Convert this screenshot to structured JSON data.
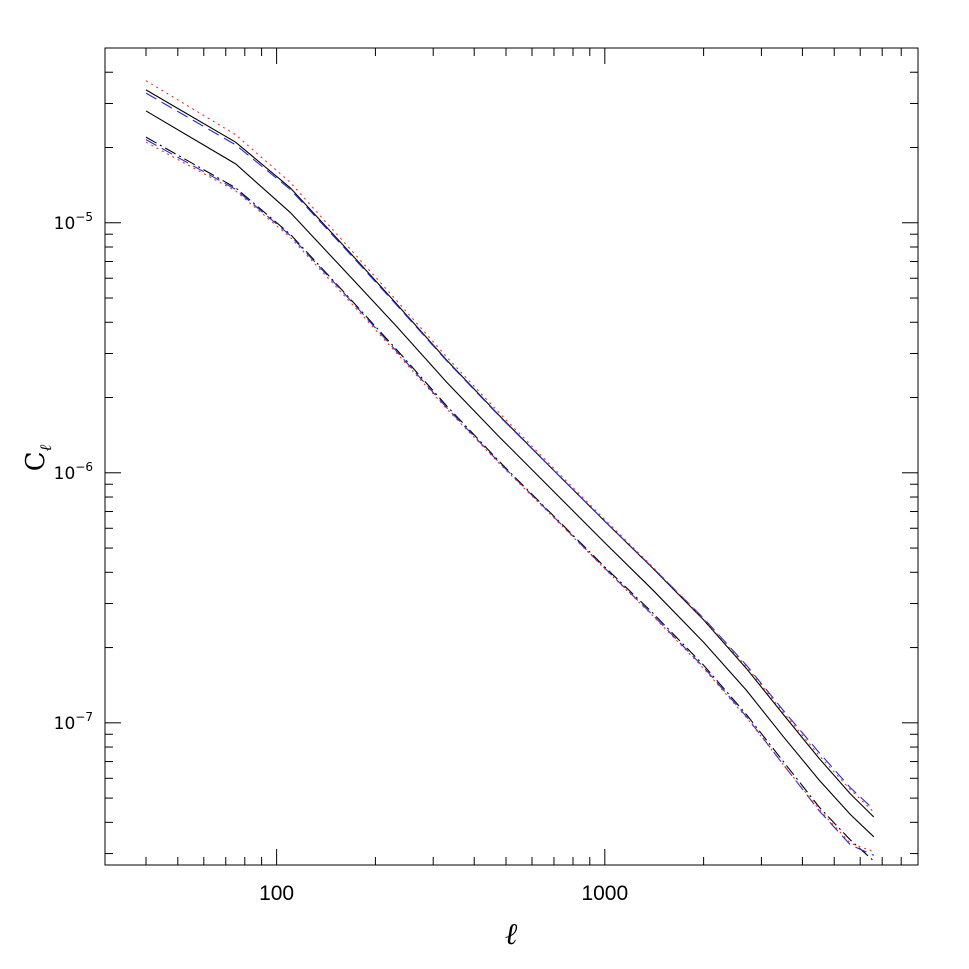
{
  "chart_data": {
    "type": "line",
    "title": "",
    "xlabel": "ℓ",
    "ylabel_main": "C",
    "ylabel_sub": "ℓ",
    "xscale": "log",
    "yscale": "log",
    "xlim": [
      30,
      9000
    ],
    "ylim": [
      2.7e-08,
      5e-05
    ],
    "grid": false,
    "legend": "none",
    "x_ticks": [
      {
        "value": 100,
        "label": "100"
      },
      {
        "value": 1000,
        "label": "1000"
      }
    ],
    "y_ticks": [
      {
        "value": 1e-05,
        "base": "10",
        "exp": "−5"
      },
      {
        "value": 1e-06,
        "base": "10",
        "exp": "−6"
      },
      {
        "value": 1e-07,
        "base": "10",
        "exp": "−7"
      }
    ],
    "x": [
      40,
      75,
      110,
      160,
      230,
      330,
      480,
      700,
      1000,
      1400,
      2000,
      2700,
      3500,
      4500,
      5600,
      6600
    ],
    "series": [
      {
        "style": "solid",
        "color": "#000000",
        "values": [
          2.8e-05,
          1.72e-05,
          1.1e-05,
          6.5e-06,
          3.9e-06,
          2.3e-06,
          1.38e-06,
          8.4e-07,
          5.25e-07,
          3.4e-07,
          2.1e-07,
          1.35e-07,
          8.8e-08,
          5.9e-08,
          4.3e-08,
          3.5e-08
        ]
      },
      {
        "style": "solid",
        "color": "#000000",
        "values": [
          3.4e-05,
          2.1e-05,
          1.38e-05,
          8.1e-06,
          4.8e-06,
          2.82e-06,
          1.68e-06,
          1.02e-06,
          6.4e-07,
          4.15e-07,
          2.58e-07,
          1.65e-07,
          1.08e-07,
          7.2e-08,
          5.2e-08,
          4.2e-08
        ]
      },
      {
        "style": "dashdot",
        "color": "#000000",
        "values": [
          2.2e-05,
          1.38e-05,
          9e-06,
          5.3e-06,
          3.15e-06,
          1.85e-06,
          1.1e-06,
          6.7e-07,
          4.2e-07,
          2.75e-07,
          1.7e-07,
          1.08e-07,
          7e-08,
          4.6e-08,
          3.4e-08,
          2.8e-08
        ]
      },
      {
        "style": "dashed",
        "color": "#2b2bd8",
        "values": [
          3.3e-05,
          2.05e-05,
          1.36e-05,
          8e-06,
          4.75e-06,
          2.8e-06,
          1.67e-06,
          1.02e-06,
          6.4e-07,
          4.17e-07,
          2.62e-07,
          1.7e-07,
          1.12e-07,
          7.6e-08,
          5.5e-08,
          4.5e-08
        ]
      },
      {
        "style": "dashed",
        "color": "#2b2bd8",
        "values": [
          2.15e-05,
          1.36e-05,
          8.9e-06,
          5.25e-06,
          3.1e-06,
          1.82e-06,
          1.09e-06,
          6.65e-07,
          4.15e-07,
          2.7e-07,
          1.67e-07,
          1.06e-07,
          6.8e-08,
          4.45e-08,
          3.25e-08,
          2.95e-08
        ]
      },
      {
        "style": "dotted",
        "color": "#e8302a",
        "values": [
          3.7e-05,
          2.25e-05,
          1.45e-05,
          8.4e-06,
          4.95e-06,
          2.9e-06,
          1.72e-06,
          1.04e-06,
          6.5e-07,
          4.2e-07,
          2.6e-07,
          1.68e-07,
          1.1e-07,
          7.4e-08,
          5.4e-08,
          4.4e-08
        ]
      },
      {
        "style": "dotted",
        "color": "#e8302a",
        "values": [
          2.1e-05,
          1.34e-05,
          8.75e-06,
          5.15e-06,
          3.05e-06,
          1.8e-06,
          1.08e-06,
          6.6e-07,
          4.13e-07,
          2.68e-07,
          1.65e-07,
          1.05e-07,
          6.8e-08,
          4.5e-08,
          3.3e-08,
          3.05e-08
        ]
      }
    ]
  }
}
